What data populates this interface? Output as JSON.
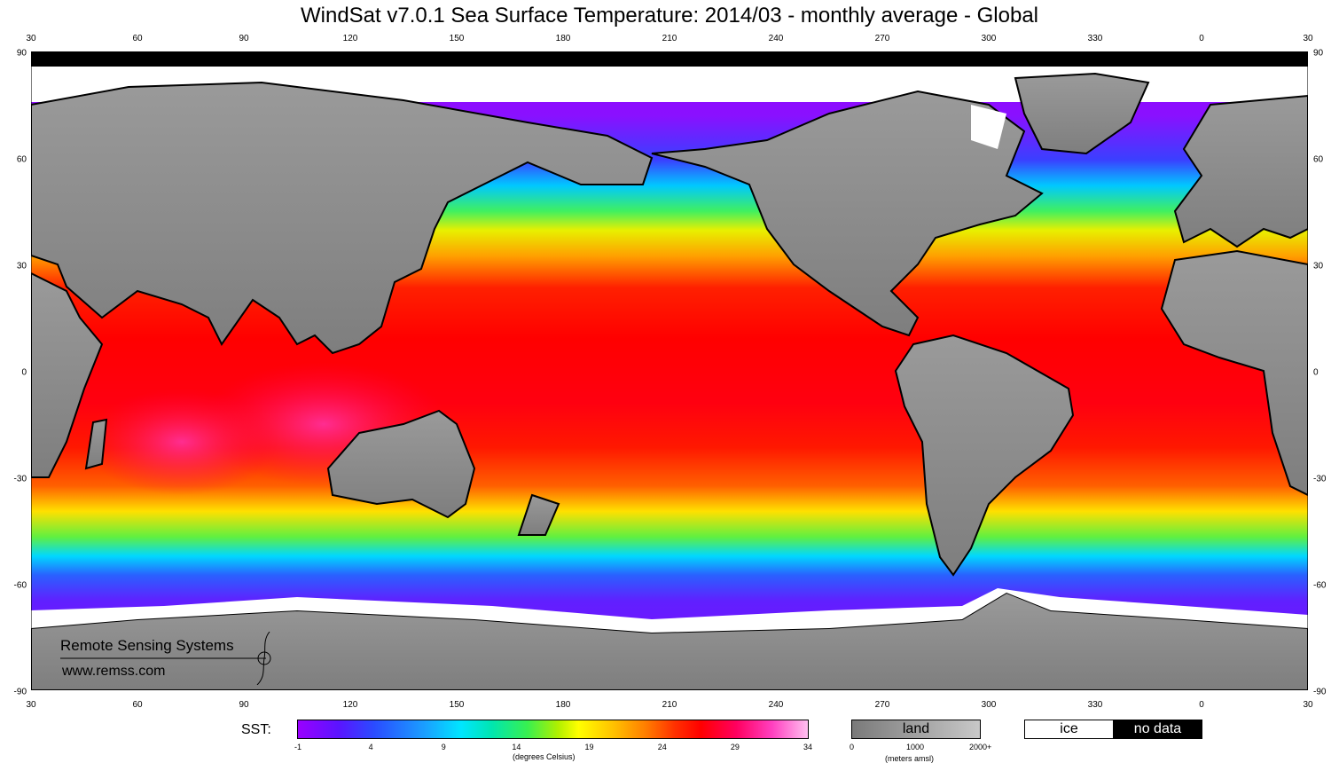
{
  "title": "WindSat  v7.0.1 Sea Surface Temperature: 2014/03 - monthly average - Global",
  "lon_ticks": [
    "30",
    "60",
    "90",
    "120",
    "150",
    "180",
    "210",
    "240",
    "270",
    "300",
    "330",
    "0",
    "30"
  ],
  "lat_ticks_left": [
    "90",
    "60",
    "30",
    "0",
    "-30",
    "-60",
    "-90"
  ],
  "lat_ticks_right": [
    "90",
    "60",
    "30",
    "0",
    "-30",
    "-60",
    "-90"
  ],
  "logo": {
    "name": "Remote Sensing Systems",
    "url": "www.remss.com"
  },
  "legend": {
    "sst_label": "SST:",
    "sst_ticks": [
      "-1",
      "4",
      "9",
      "14",
      "19",
      "24",
      "29",
      "34"
    ],
    "sst_units": "(degrees Celsius)",
    "land_label": "land",
    "land_ticks": [
      "0",
      "1000",
      "2000+"
    ],
    "land_units": "(meters amsl)",
    "ice_label": "ice",
    "nodata_label": "no data"
  },
  "colors": {
    "land": "#8f8f8f",
    "ice": "#ffffff",
    "no_data": "#000000",
    "sst_scale": [
      "#9a00ff",
      "#2a4cff",
      "#00e6ff",
      "#38f050",
      "#ffff00",
      "#ff8000",
      "#ff0000",
      "#ff40c0",
      "#ffc0f0"
    ]
  }
}
